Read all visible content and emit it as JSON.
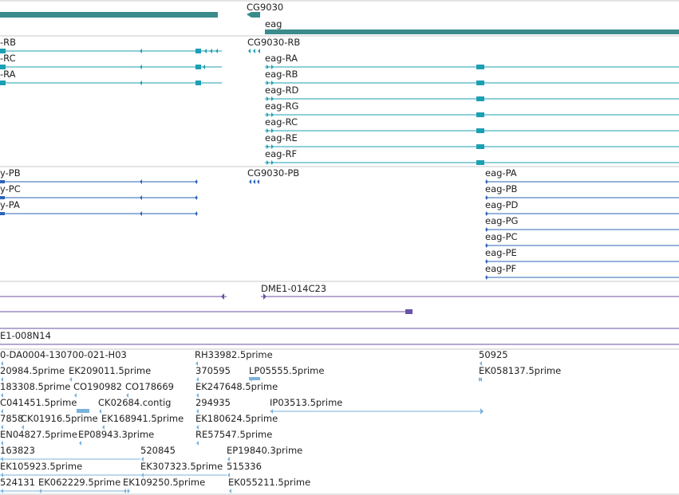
{
  "colors": {
    "gene": "#3a8b8c",
    "transcript": "#1d9fb3",
    "protein": "#2e64b8",
    "clone": "#6b52a6",
    "est": "#7ab3dc",
    "separator": "#c8c8c8"
  },
  "tracks": {
    "genes": {
      "labels": [
        "CG9030",
        "eag"
      ]
    },
    "transcripts": {
      "labels": [
        "-RB",
        "-RC",
        "-RA",
        "CG9030-RB",
        "eag-RA",
        "eag-RB",
        "eag-RD",
        "eag-RG",
        "eag-RC",
        "eag-RE",
        "eag-RF"
      ]
    },
    "proteins": {
      "labels": [
        "y-PB",
        "y-PC",
        "y-PA",
        "CG9030-PB",
        "eag-PA",
        "eag-PB",
        "eag-PD",
        "eag-PG",
        "eag-PC",
        "eag-PE",
        "eag-PF"
      ]
    },
    "clones": {
      "labels": [
        "DME1-014C23",
        "E1-008N14"
      ]
    },
    "ests": {
      "labels": [
        "0-DA0004-130700-021-H03",
        "RH33982.5prime",
        "50925",
        "20984.5prime",
        "EK209011.5prime",
        "370595",
        "LP05555.5prime",
        "EK058137.5prime",
        "183308.5prime",
        "CO190982",
        "CO178669",
        "EK247648.5prime",
        "C041451.5prime",
        "CK02684.contig",
        "294935",
        "IP03513.5prime",
        "7858",
        "CK01916.5prime",
        "EK168941.5prime",
        "EK180624.5prime",
        "EN04827.5prime",
        "EP08943.3prime",
        "RE57547.5prime",
        "163823",
        "520845",
        "EP19840.3prime",
        "EK105923.5prime",
        "EK307323.5prime",
        "515336",
        "524131",
        "EK062229.5prime",
        "EK109250.5prime",
        "EK055211.5prime"
      ]
    }
  }
}
